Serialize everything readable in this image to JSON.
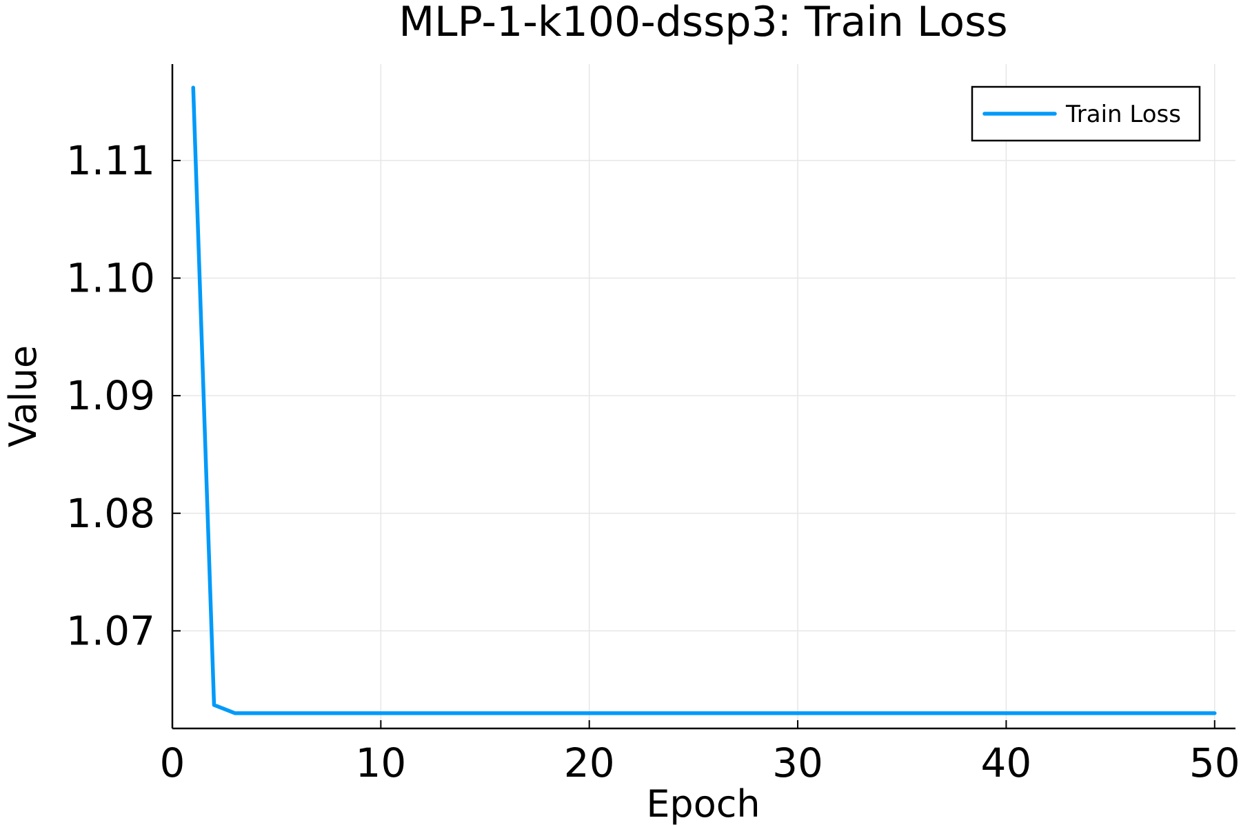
{
  "chart_data": {
    "type": "line",
    "title": "MLP-1-k100-dssp3: Train Loss",
    "xlabel": "Epoch",
    "ylabel": "Value",
    "xlim": [
      0,
      51
    ],
    "ylim": [
      1.0617,
      1.1182
    ],
    "xticks": [
      0,
      10,
      20,
      30,
      40,
      50
    ],
    "xtick_labels": [
      "0",
      "10",
      "20",
      "30",
      "40",
      "50"
    ],
    "yticks": [
      1.07,
      1.08,
      1.09,
      1.1,
      1.11
    ],
    "ytick_labels": [
      "1.07",
      "1.08",
      "1.09",
      "1.10",
      "1.11"
    ],
    "grid": true,
    "legend": {
      "position": "top-right"
    },
    "series": [
      {
        "name": "Train Loss",
        "color": "#009AF9",
        "x": [
          1,
          2,
          3,
          4,
          5,
          6,
          7,
          8,
          9,
          10,
          11,
          12,
          13,
          14,
          15,
          16,
          17,
          18,
          19,
          20,
          21,
          22,
          23,
          24,
          25,
          26,
          27,
          28,
          29,
          30,
          31,
          32,
          33,
          34,
          35,
          36,
          37,
          38,
          39,
          40,
          41,
          42,
          43,
          44,
          45,
          46,
          47,
          48,
          49,
          50
        ],
        "y": [
          1.1162,
          1.0637,
          1.063,
          1.063,
          1.063,
          1.063,
          1.063,
          1.063,
          1.063,
          1.063,
          1.063,
          1.063,
          1.063,
          1.063,
          1.063,
          1.063,
          1.063,
          1.063,
          1.063,
          1.063,
          1.063,
          1.063,
          1.063,
          1.063,
          1.063,
          1.063,
          1.063,
          1.063,
          1.063,
          1.063,
          1.063,
          1.063,
          1.063,
          1.063,
          1.063,
          1.063,
          1.063,
          1.063,
          1.063,
          1.063,
          1.063,
          1.063,
          1.063,
          1.063,
          1.063,
          1.063,
          1.063,
          1.063,
          1.063,
          1.063
        ]
      }
    ]
  }
}
